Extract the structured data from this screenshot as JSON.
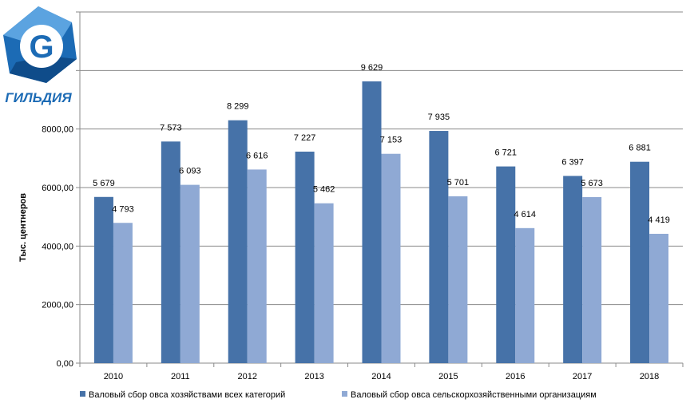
{
  "logo": {
    "text": "ГИЛЬДИЯ",
    "letter": "G"
  },
  "chart_data": {
    "type": "bar",
    "categories": [
      "2010",
      "2011",
      "2012",
      "2013",
      "2014",
      "2015",
      "2016",
      "2017",
      "2018"
    ],
    "series": [
      {
        "name": "Валовый сбор овса хозяйствами всех категорий",
        "color": "#4672a8",
        "values": [
          5679,
          7573,
          8299,
          7227,
          9629,
          7935,
          6721,
          6397,
          6881
        ],
        "labels": [
          "5 679",
          "7 573",
          "8 299",
          "7 227",
          "9 629",
          "7 935",
          "6 721",
          "6 397",
          "6 881"
        ]
      },
      {
        "name": "Валовый сбор овса сельскорхозяйственными  организациям",
        "color": "#8fa9d4",
        "values": [
          4793,
          6093,
          6616,
          5462,
          7153,
          5701,
          4614,
          5673,
          4419
        ],
        "labels": [
          "4 793",
          "6 093",
          "6 616",
          "5 462",
          "7 153",
          "5 701",
          "4 614",
          "5 673",
          "4 419"
        ]
      }
    ],
    "xlabel": "",
    "ylabel": "Тыс. центнеров",
    "ylim": [
      0,
      12000
    ],
    "yticks": [
      0,
      2000,
      4000,
      6000,
      8000
    ],
    "ytick_labels": [
      "0,00",
      "2000,00",
      "4000,00",
      "6000,00",
      "8000,00"
    ],
    "grid": true,
    "legend": "bottom"
  }
}
